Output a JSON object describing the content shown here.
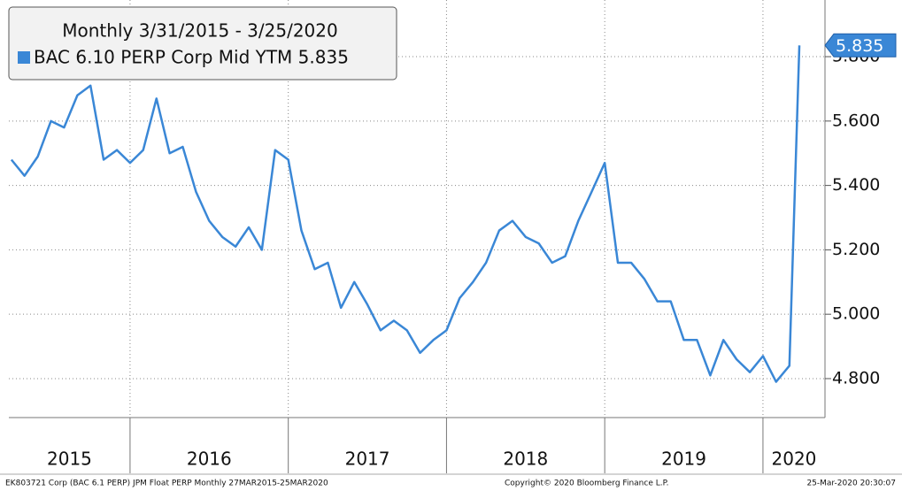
{
  "chart_data": {
    "type": "line",
    "title": "Monthly 3/31/2015 - 3/25/2020",
    "x": [
      2015.25,
      2015.333,
      2015.417,
      2015.5,
      2015.583,
      2015.667,
      2015.75,
      2015.833,
      2015.917,
      2016.0,
      2016.083,
      2016.167,
      2016.25,
      2016.333,
      2016.417,
      2016.5,
      2016.583,
      2016.667,
      2016.75,
      2016.833,
      2016.917,
      2017.0,
      2017.083,
      2017.167,
      2017.25,
      2017.333,
      2017.417,
      2017.5,
      2017.583,
      2017.667,
      2017.75,
      2017.833,
      2017.917,
      2018.0,
      2018.083,
      2018.167,
      2018.25,
      2018.333,
      2018.417,
      2018.5,
      2018.583,
      2018.667,
      2018.75,
      2018.833,
      2018.917,
      2019.0,
      2019.083,
      2019.167,
      2019.25,
      2019.333,
      2019.417,
      2019.5,
      2019.583,
      2019.667,
      2019.75,
      2019.833,
      2019.917,
      2020.0,
      2020.083,
      2020.167,
      2020.23
    ],
    "series": [
      {
        "name": "BAC 6.10 PERP Corp Mid YTM 5.835",
        "color": "#3a87d6",
        "values": [
          5.48,
          5.43,
          5.49,
          5.6,
          5.58,
          5.68,
          5.71,
          5.48,
          5.51,
          5.47,
          5.51,
          5.67,
          5.5,
          5.52,
          5.38,
          5.29,
          5.24,
          5.21,
          5.27,
          5.2,
          5.51,
          5.48,
          5.26,
          5.14,
          5.16,
          5.02,
          5.1,
          5.03,
          4.95,
          4.98,
          4.95,
          4.88,
          4.92,
          4.95,
          5.05,
          5.1,
          5.16,
          5.26,
          5.29,
          5.24,
          5.22,
          5.16,
          5.18,
          5.29,
          5.38,
          5.47,
          5.16,
          5.16,
          5.11,
          5.04,
          5.04,
          4.92,
          4.92,
          4.81,
          4.92,
          4.86,
          4.82,
          4.87,
          4.79,
          4.84,
          5.835
        ]
      }
    ],
    "last_value_label": "5.835",
    "xlim": [
      2015.234,
      2020.392
    ],
    "xticks": [
      2016,
      2017,
      2018,
      2019,
      2020
    ],
    "xtick_labels": [
      "2015",
      "2016",
      "2017",
      "2018",
      "2019",
      "2020"
    ],
    "ylim": [
      4.679,
      5.976
    ],
    "yticks": [
      {
        "value": 4.8,
        "label": "4.800"
      },
      {
        "value": 5.0,
        "label": "5.000"
      },
      {
        "value": 5.2,
        "label": "5.200"
      },
      {
        "value": 5.4,
        "label": "5.400"
      },
      {
        "value": 5.6,
        "label": "5.600"
      },
      {
        "value": 5.8,
        "label": "5.800"
      }
    ],
    "grid": true,
    "footer_left": "EK803721 Corp (BAC 6.1 PERP) JPM Float PERP  Monthly 27MAR2015-25MAR2020",
    "footer_center": "Copyright© 2020 Bloomberg Finance L.P.",
    "footer_right": "25-Mar-2020 20:30:07"
  }
}
